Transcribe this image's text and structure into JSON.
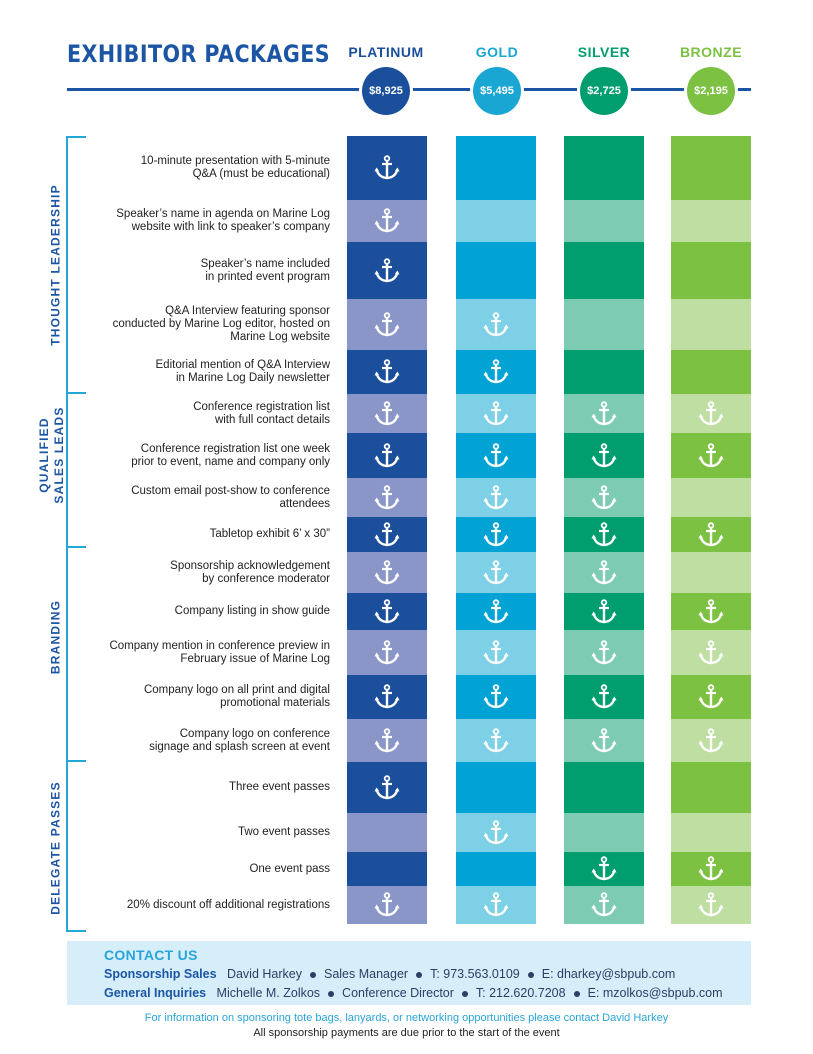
{
  "title": "EXHIBITOR PACKAGES",
  "colors": {
    "brand": "#1b55a3",
    "accent": "#22a7d8",
    "platinum": [
      "#1b4f9c",
      "#8b96c8"
    ],
    "gold": [
      "#00a3d3",
      "#7dd0e5"
    ],
    "silver": [
      "#009e6f",
      "#7ecbb4"
    ],
    "bronze": [
      "#7cc142",
      "#bfdea2"
    ]
  },
  "tiers": [
    {
      "name": "PLATINUM",
      "price": "$8,925",
      "color": "#1b4f9c"
    },
    {
      "name": "GOLD",
      "price": "$5,495",
      "color": "#1aa6d3"
    },
    {
      "name": "SILVER",
      "price": "$2,725",
      "color": "#009e6f"
    },
    {
      "name": "BRONZE",
      "price": "$2,195",
      "color": "#7cc142"
    }
  ],
  "categories": [
    {
      "label": [
        "THOUGHT LEADERSHIP"
      ]
    },
    {
      "label": [
        "QUALIFIED",
        "SALES LEADS"
      ]
    },
    {
      "label": [
        "BRANDING"
      ]
    },
    {
      "label": [
        "DELEGATE PASSES"
      ]
    }
  ],
  "rows": [
    {
      "text": [
        "10-minute presentation with 5-minute",
        "Q&A (must be educational)"
      ],
      "included": [
        true,
        false,
        false,
        false
      ]
    },
    {
      "text": [
        "Speaker’s name in agenda on Marine Log",
        "website with link to speaker’s company"
      ],
      "included": [
        true,
        false,
        false,
        false
      ]
    },
    {
      "text": [
        "Speaker’s name included",
        "in printed event program"
      ],
      "included": [
        true,
        false,
        false,
        false
      ]
    },
    {
      "text": [
        "Q&A Interview featuring sponsor",
        "conducted by Marine Log editor, hosted on",
        "Marine Log website"
      ],
      "included": [
        true,
        true,
        false,
        false
      ]
    },
    {
      "text": [
        "Editorial mention of Q&A Interview",
        "in Marine Log Daily newsletter"
      ],
      "included": [
        true,
        true,
        false,
        false
      ]
    },
    {
      "text": [
        "Conference registration list",
        "with full contact details"
      ],
      "included": [
        true,
        true,
        true,
        true
      ]
    },
    {
      "text": [
        "Conference registration list one week",
        "prior to event, name and company only"
      ],
      "included": [
        true,
        true,
        true,
        true
      ]
    },
    {
      "text": [
        "Custom email post-show to conference",
        "attendees"
      ],
      "included": [
        true,
        true,
        true,
        false
      ]
    },
    {
      "text": [
        "Tabletop exhibit 6’ x 30”"
      ],
      "included": [
        true,
        true,
        true,
        true
      ]
    },
    {
      "text": [
        "Sponsorship acknowledgement",
        "by conference moderator"
      ],
      "included": [
        true,
        true,
        true,
        false
      ]
    },
    {
      "text": [
        "Company listing in show guide"
      ],
      "included": [
        true,
        true,
        true,
        true
      ]
    },
    {
      "text": [
        "Company mention in conference preview in",
        "February issue of Marine Log"
      ],
      "included": [
        true,
        true,
        true,
        true
      ]
    },
    {
      "text": [
        "Company logo on all print and digital",
        "promotional materials"
      ],
      "included": [
        true,
        true,
        true,
        true
      ]
    },
    {
      "text": [
        "Company logo on conference",
        "signage and splash screen at event"
      ],
      "included": [
        true,
        true,
        true,
        true
      ]
    },
    {
      "text": [
        "Three event passes"
      ],
      "included": [
        true,
        false,
        false,
        false
      ]
    },
    {
      "text": [
        "Two event passes"
      ],
      "included": [
        false,
        true,
        false,
        false
      ]
    },
    {
      "text": [
        "One event pass"
      ],
      "included": [
        false,
        false,
        true,
        true
      ]
    },
    {
      "text": [
        "20% discount off additional registrations"
      ],
      "included": [
        true,
        true,
        true,
        true
      ]
    }
  ],
  "contact": {
    "heading": "CONTACT US",
    "lines": [
      {
        "label": "Sponsorship Sales",
        "parts": [
          "David Harkey",
          "Sales Manager",
          "T: 973.563.0109",
          "E: dharkey@sbpub.com"
        ]
      },
      {
        "label": "General Inquiries",
        "parts": [
          "Michelle M. Zolkos",
          "Conference Director",
          "T: 212.620.7208",
          "E: mzolkos@sbpub.com"
        ]
      }
    ]
  },
  "footnote_1": "For information on sponsoring tote bags, lanyards, or networking opportunities please contact David Harkey",
  "footnote_2": "All sponsorship payments are due prior to the start of the event"
}
